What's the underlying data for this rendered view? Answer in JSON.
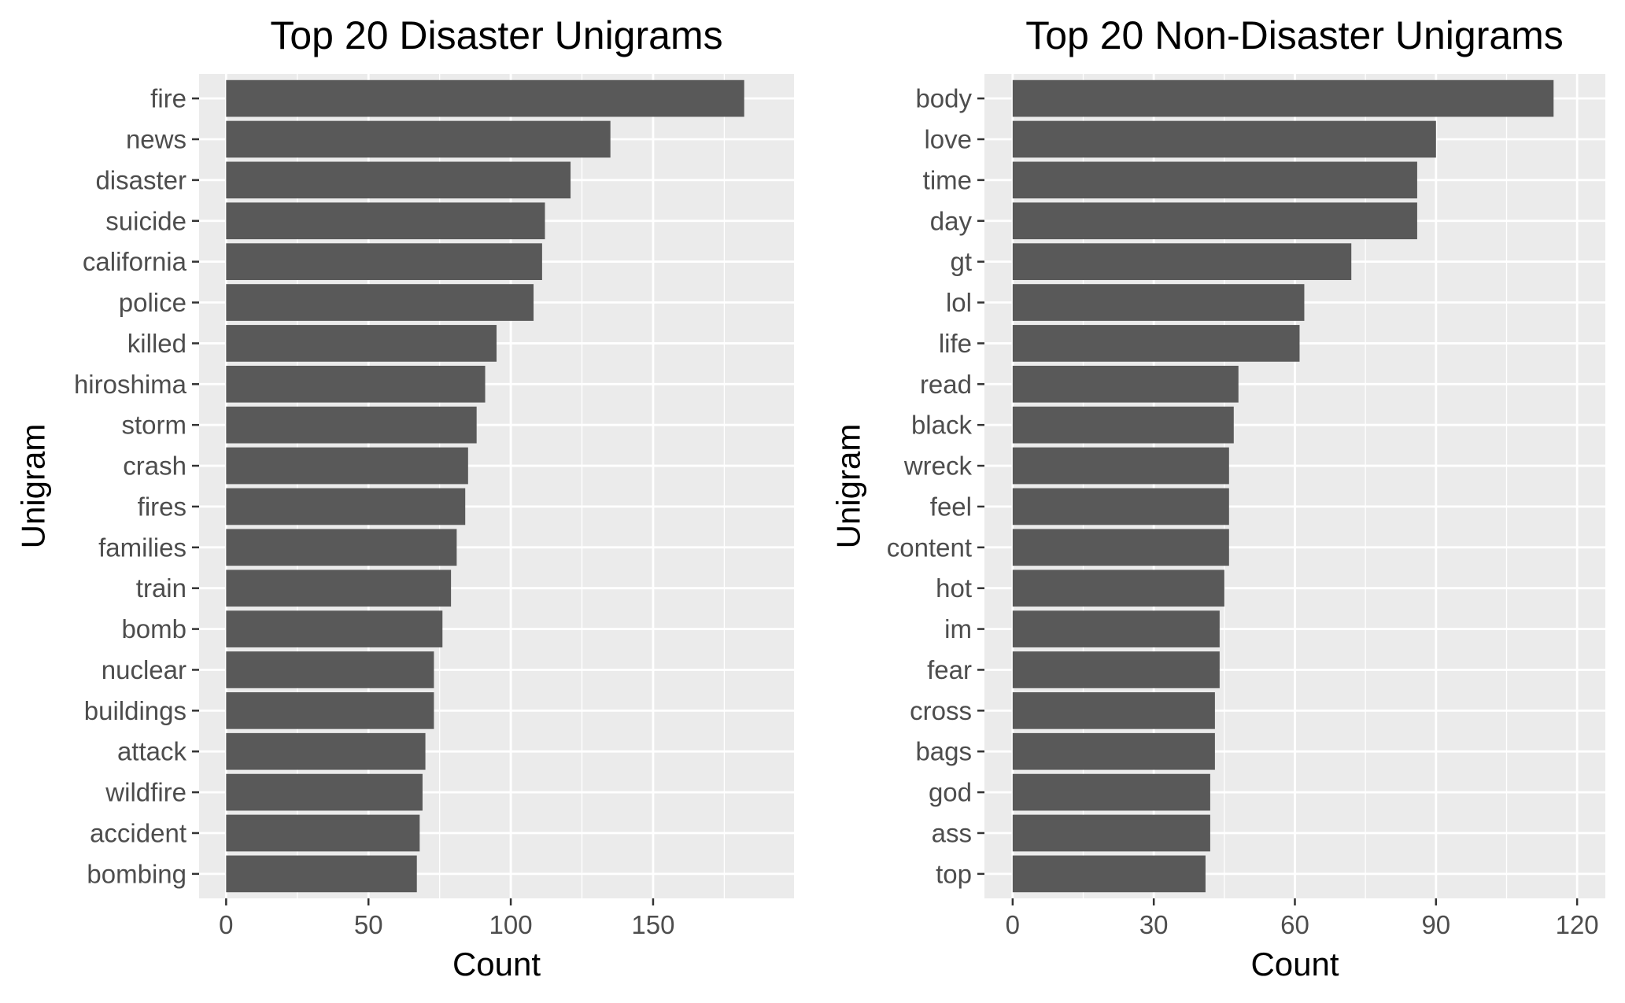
{
  "chart_data": [
    {
      "type": "bar",
      "orientation": "horizontal",
      "title": "Top 20 Disaster Unigrams",
      "xlabel": "Count",
      "ylabel": "Unigram",
      "xlim": [
        0,
        190
      ],
      "xticks": [
        0,
        50,
        100,
        150
      ],
      "grid": true,
      "categories": [
        "fire",
        "news",
        "disaster",
        "suicide",
        "california",
        "police",
        "killed",
        "hiroshima",
        "storm",
        "crash",
        "fires",
        "families",
        "train",
        "bomb",
        "nuclear",
        "buildings",
        "attack",
        "wildfire",
        "accident",
        "bombing"
      ],
      "values": [
        182,
        135,
        121,
        112,
        111,
        108,
        95,
        91,
        88,
        85,
        84,
        81,
        79,
        76,
        73,
        73,
        70,
        69,
        68,
        67
      ],
      "bar_color": "#595959"
    },
    {
      "type": "bar",
      "orientation": "horizontal",
      "title": "Top 20 Non-Disaster Unigrams",
      "xlabel": "Count",
      "ylabel": "Unigram",
      "xlim": [
        0,
        120
      ],
      "xticks": [
        0,
        30,
        60,
        90,
        120
      ],
      "grid": true,
      "categories": [
        "body",
        "love",
        "time",
        "day",
        "gt",
        "lol",
        "life",
        "read",
        "black",
        "wreck",
        "feel",
        "content",
        "hot",
        "im",
        "fear",
        "cross",
        "bags",
        "god",
        "ass",
        "top"
      ],
      "values": [
        115,
        90,
        86,
        86,
        72,
        62,
        61,
        48,
        47,
        46,
        46,
        46,
        45,
        44,
        44,
        43,
        43,
        42,
        42,
        41
      ],
      "bar_color": "#595959"
    }
  ],
  "colors": {
    "panel_background": "#ebebeb",
    "grid_major": "#ffffff",
    "bar": "#595959",
    "tick_text": "#4d4d4d",
    "title_text": "#000000"
  }
}
